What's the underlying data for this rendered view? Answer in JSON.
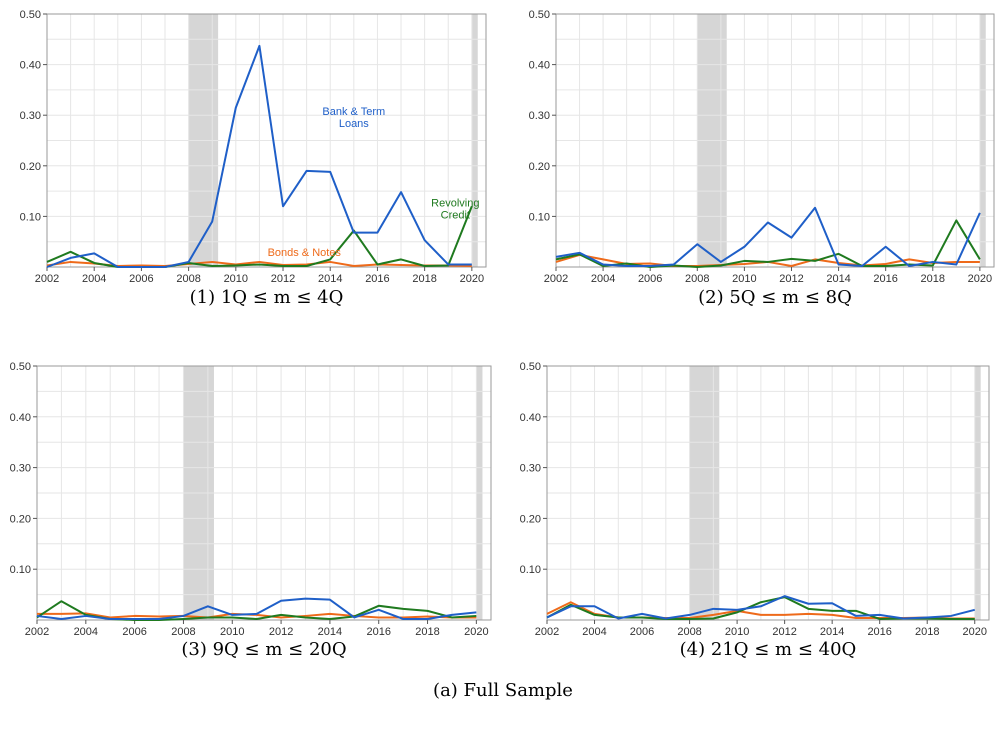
{
  "figure_caption": "(a) Full Sample",
  "colors": {
    "Bank & Term Loans": "#1f5fc8",
    "Revolving Credit": "#1f7a1f",
    "Bonds & Notes": "#ee6a1a",
    "recession": "#d6d6d6"
  },
  "chart_data": [
    {
      "type": "line",
      "caption": "(1) 1Q ≤ m ≤ 4Q",
      "x": [
        2002,
        2003,
        2004,
        2005,
        2006,
        2007,
        2008,
        2009,
        2010,
        2011,
        2012,
        2013,
        2014,
        2015,
        2016,
        2017,
        2018,
        2019,
        2020
      ],
      "xticks": [
        2002,
        2004,
        2006,
        2008,
        2010,
        2012,
        2014,
        2016,
        2018,
        2020
      ],
      "yticks": [
        "0.10",
        "0.20",
        "0.30",
        "0.40",
        "0.50"
      ],
      "ylim": [
        0,
        0.5
      ],
      "recessions": [
        [
          2008.0,
          2009.25
        ],
        [
          2020.0,
          2020.25
        ]
      ],
      "grid": true,
      "series": [
        {
          "key": "Bank & Term Loans",
          "values": [
            0.0,
            0.018,
            0.027,
            0.0,
            0.0,
            0.0,
            0.01,
            0.09,
            0.315,
            0.437,
            0.12,
            0.19,
            0.188,
            0.068,
            0.068,
            0.148,
            0.053,
            0.005,
            0.005
          ]
        },
        {
          "key": "Revolving Credit",
          "values": [
            0.01,
            0.03,
            0.008,
            0.0,
            0.0,
            0.0,
            0.008,
            0.002,
            0.003,
            0.005,
            0.002,
            0.002,
            0.015,
            0.072,
            0.005,
            0.015,
            0.002,
            0.003,
            0.12
          ]
        },
        {
          "key": "Bonds & Notes",
          "values": [
            0.003,
            0.01,
            0.007,
            0.002,
            0.003,
            0.002,
            0.006,
            0.01,
            0.005,
            0.01,
            0.004,
            0.005,
            0.01,
            0.002,
            0.005,
            0.004,
            0.003,
            0.003,
            0.002
          ]
        }
      ],
      "annotations": [
        {
          "lines": [
            "Bank & Term",
            "Loans"
          ],
          "series": "Bank & Term Loans",
          "x": 2015.0,
          "y": 0.3
        },
        {
          "lines": [
            "Revolving",
            "Credit"
          ],
          "series": "Revolving Credit",
          "x": 2019.3,
          "y": 0.12
        },
        {
          "lines": [
            "Bonds & Notes"
          ],
          "series": "Bonds & Notes",
          "x": 2012.9,
          "y": 0.022
        }
      ]
    },
    {
      "type": "line",
      "caption": "(2) 5Q ≤ m ≤ 8Q",
      "x": [
        2002,
        2003,
        2004,
        2005,
        2006,
        2007,
        2008,
        2009,
        2010,
        2011,
        2012,
        2013,
        2014,
        2015,
        2016,
        2017,
        2018,
        2019,
        2020
      ],
      "xticks": [
        2002,
        2004,
        2006,
        2008,
        2010,
        2012,
        2014,
        2016,
        2018,
        2020
      ],
      "yticks": [
        "0.10",
        "0.20",
        "0.30",
        "0.40",
        "0.50"
      ],
      "ylim": [
        0,
        0.5
      ],
      "recessions": [
        [
          2008.0,
          2009.25
        ],
        [
          2020.0,
          2020.25
        ]
      ],
      "grid": true,
      "series": [
        {
          "key": "Bank & Term Loans",
          "values": [
            0.02,
            0.028,
            0.005,
            0.002,
            0.002,
            0.005,
            0.045,
            0.01,
            0.04,
            0.088,
            0.058,
            0.117,
            0.005,
            0.002,
            0.04,
            0.002,
            0.01,
            0.005,
            0.107
          ]
        },
        {
          "key": "Revolving Credit",
          "values": [
            0.015,
            0.025,
            0.002,
            0.007,
            0.0,
            0.003,
            0.0,
            0.003,
            0.012,
            0.01,
            0.016,
            0.012,
            0.026,
            0.002,
            0.002,
            0.005,
            0.003,
            0.092,
            0.015
          ]
        },
        {
          "key": "Bonds & Notes",
          "values": [
            0.01,
            0.024,
            0.015,
            0.006,
            0.007,
            0.002,
            0.002,
            0.004,
            0.006,
            0.01,
            0.002,
            0.015,
            0.008,
            0.003,
            0.006,
            0.015,
            0.008,
            0.01,
            0.01
          ]
        }
      ],
      "annotations": []
    },
    {
      "type": "line",
      "caption": "(3) 9Q ≤ m ≤ 20Q",
      "x": [
        2002,
        2003,
        2004,
        2005,
        2006,
        2007,
        2008,
        2009,
        2010,
        2011,
        2012,
        2013,
        2014,
        2015,
        2016,
        2017,
        2018,
        2019,
        2020
      ],
      "xticks": [
        2002,
        2004,
        2006,
        2008,
        2010,
        2012,
        2014,
        2016,
        2018,
        2020
      ],
      "yticks": [
        "0.10",
        "0.20",
        "0.30",
        "0.40",
        "0.50"
      ],
      "ylim": [
        0,
        0.5
      ],
      "recessions": [
        [
          2008.0,
          2009.25
        ],
        [
          2020.0,
          2020.25
        ]
      ],
      "grid": true,
      "series": [
        {
          "key": "Bank & Term Loans",
          "values": [
            0.008,
            0.002,
            0.008,
            0.002,
            0.002,
            0.002,
            0.008,
            0.027,
            0.01,
            0.012,
            0.038,
            0.042,
            0.04,
            0.005,
            0.02,
            0.002,
            0.002,
            0.01,
            0.015
          ]
        },
        {
          "key": "Revolving Credit",
          "values": [
            0.005,
            0.037,
            0.01,
            0.002,
            0.0,
            0.0,
            0.002,
            0.005,
            0.005,
            0.002,
            0.01,
            0.005,
            0.002,
            0.007,
            0.028,
            0.022,
            0.018,
            0.005,
            0.008
          ]
        },
        {
          "key": "Bonds & Notes",
          "values": [
            0.012,
            0.012,
            0.013,
            0.005,
            0.008,
            0.007,
            0.008,
            0.005,
            0.012,
            0.01,
            0.005,
            0.008,
            0.012,
            0.008,
            0.005,
            0.005,
            0.007,
            0.005,
            0.005
          ]
        }
      ],
      "annotations": []
    },
    {
      "type": "line",
      "caption": "(4) 21Q ≤ m ≤ 40Q",
      "x": [
        2002,
        2003,
        2004,
        2005,
        2006,
        2007,
        2008,
        2009,
        2010,
        2011,
        2012,
        2013,
        2014,
        2015,
        2016,
        2017,
        2018,
        2019,
        2020
      ],
      "xticks": [
        2002,
        2004,
        2006,
        2008,
        2010,
        2012,
        2014,
        2016,
        2018,
        2020
      ],
      "yticks": [
        "0.10",
        "0.20",
        "0.30",
        "0.40",
        "0.50"
      ],
      "ylim": [
        0,
        0.5
      ],
      "recessions": [
        [
          2008.0,
          2009.25
        ],
        [
          2020.0,
          2020.25
        ]
      ],
      "grid": true,
      "series": [
        {
          "key": "Bank & Term Loans",
          "values": [
            0.005,
            0.027,
            0.027,
            0.003,
            0.012,
            0.003,
            0.01,
            0.022,
            0.02,
            0.027,
            0.047,
            0.032,
            0.033,
            0.008,
            0.01,
            0.003,
            0.005,
            0.008,
            0.02
          ]
        },
        {
          "key": "Revolving Credit",
          "values": [
            0.005,
            0.03,
            0.01,
            0.005,
            0.005,
            0.002,
            0.002,
            0.003,
            0.015,
            0.035,
            0.045,
            0.022,
            0.018,
            0.018,
            0.002,
            0.003,
            0.003,
            0.002,
            0.002
          ]
        },
        {
          "key": "Bonds & Notes",
          "values": [
            0.012,
            0.035,
            0.012,
            0.005,
            0.005,
            0.004,
            0.004,
            0.01,
            0.018,
            0.01,
            0.01,
            0.012,
            0.01,
            0.004,
            0.004,
            0.004,
            0.005,
            0.003,
            0.003
          ]
        }
      ],
      "annotations": []
    }
  ]
}
